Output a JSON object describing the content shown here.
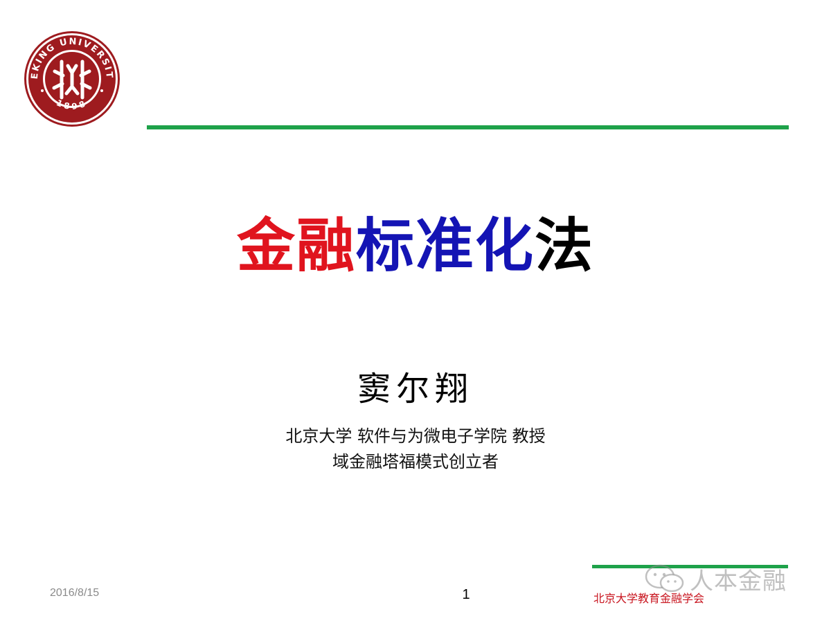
{
  "logo": {
    "icon": "peking-university-seal-icon",
    "ring_text_top": "PEKING UNIVERSITY",
    "ring_text_bottom": "1898",
    "colors": {
      "crimson": "#9e1b1f",
      "white": "#ffffff"
    }
  },
  "title": {
    "part_red": "金融",
    "part_blue": "标准化",
    "part_black": "法",
    "colors": {
      "red": "#e0141e",
      "blue": "#1414b4",
      "black": "#000000"
    }
  },
  "author": {
    "name": "窦尔翔",
    "affiliation_line1": "北京大学 软件与为微电子学院 教授",
    "affiliation_line2": "域金融塔福模式创立者"
  },
  "footer": {
    "date": "2016/8/15",
    "page_number": "1",
    "organization": "北京大学教育金融学会"
  },
  "watermark": {
    "icon": "wechat-icon",
    "text": "人本金融"
  },
  "accent_color": "#1ea24a"
}
